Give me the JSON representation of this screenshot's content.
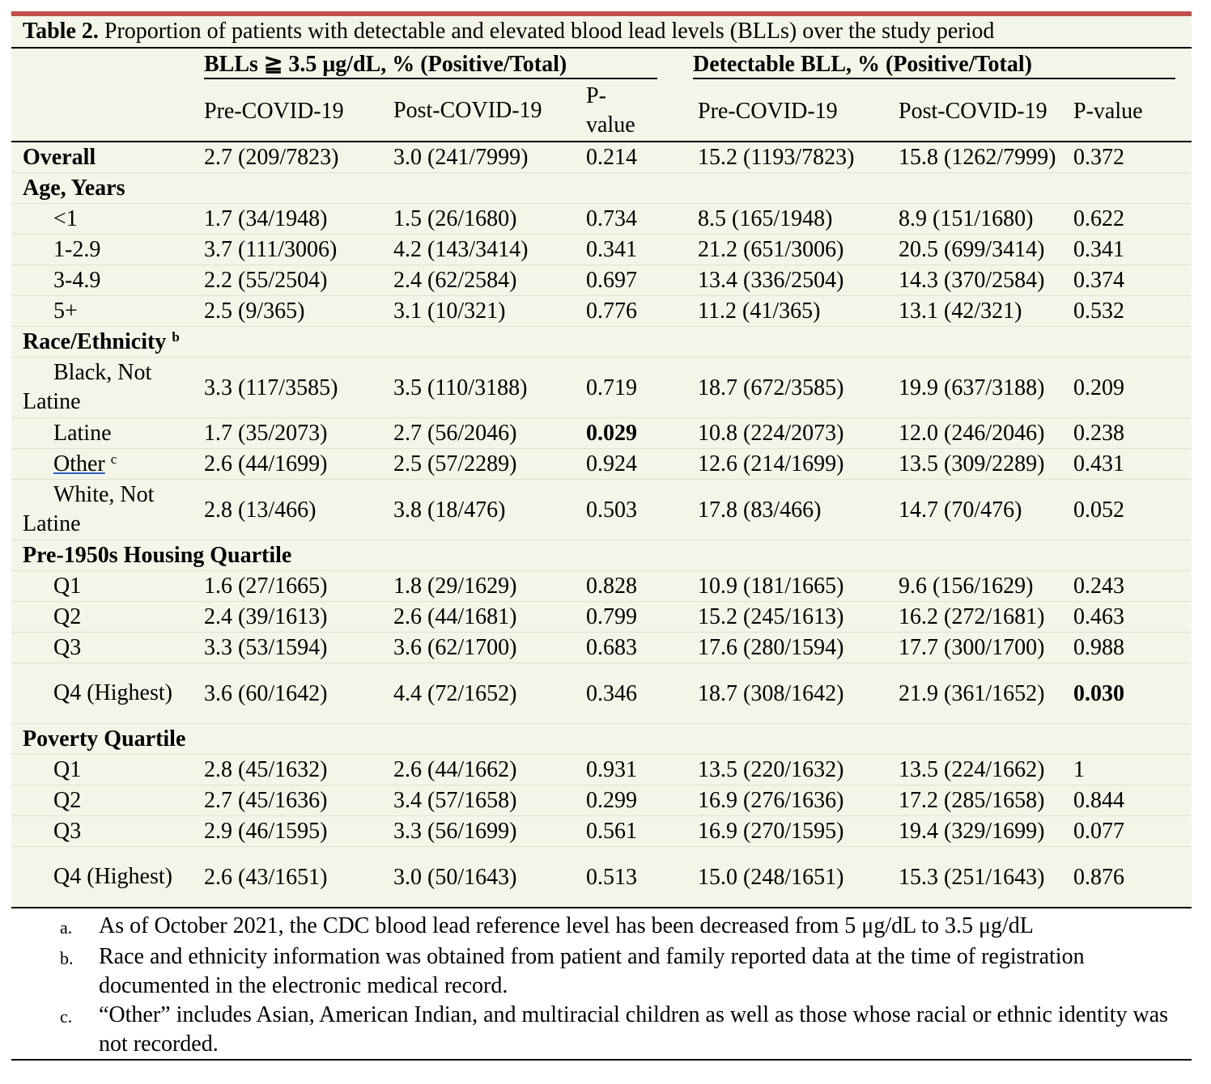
{
  "caption": {
    "label": "Table 2.",
    "text": " Proportion of patients with detectable and elevated blood lead levels (BLLs) over the study period"
  },
  "groups": {
    "elevated": "BLLs ≧ 3.5 μg/dL, % (Positive/Total)",
    "detectable": "Detectable BLL, % (Positive/Total)"
  },
  "columns": {
    "pre1": "Pre-COVID-19",
    "post1": "Post-COVID-19",
    "p1": "P-value",
    "pre2": "Pre-COVID-19",
    "post2": "Post-COVID-19",
    "p2": "P-value"
  },
  "rows": [
    {
      "type": "data",
      "label": "Overall",
      "bold_label": true,
      "sub": false,
      "cells": [
        "2.7 (209/7823)",
        "3.0 (241/7999)",
        "0.214",
        "15.2 (1193/7823)",
        "15.8 (1262/7999)",
        "0.372"
      ],
      "bold_cells": []
    },
    {
      "type": "section",
      "label": "Age, Years"
    },
    {
      "type": "data",
      "label": "<1",
      "sub": true,
      "cells": [
        "1.7 (34/1948)",
        "1.5 (26/1680)",
        "0.734",
        "8.5 (165/1948)",
        "8.9 (151/1680)",
        "0.622"
      ],
      "bold_cells": []
    },
    {
      "type": "data",
      "label": "1-2.9",
      "sub": true,
      "cells": [
        "3.7 (111/3006)",
        "4.2 (143/3414)",
        "0.341",
        "21.2 (651/3006)",
        "20.5 (699/3414)",
        "0.341"
      ],
      "bold_cells": []
    },
    {
      "type": "data",
      "label": "3-4.9",
      "sub": true,
      "cells": [
        "2.2 (55/2504)",
        "2.4 (62/2584)",
        "0.697",
        "13.4 (336/2504)",
        "14.3 (370/2584)",
        "0.374"
      ],
      "bold_cells": []
    },
    {
      "type": "data",
      "label": "5+",
      "sub": true,
      "cells": [
        "2.5 (9/365)",
        "3.1 (10/321)",
        "0.776",
        "11.2 (41/365)",
        "13.1 (42/321)",
        "0.532"
      ],
      "bold_cells": []
    },
    {
      "type": "section",
      "label": "Race/Ethnicity",
      "sup": "b"
    },
    {
      "type": "data",
      "label": "Black, Not Latine",
      "sub": true,
      "wrap": true,
      "cells": [
        "3.3 (117/3585)",
        "3.5 (110/3188)",
        "0.719",
        "18.7 (672/3585)",
        "19.9 (637/3188)",
        "0.209"
      ],
      "bold_cells": []
    },
    {
      "type": "data",
      "label": "Latine",
      "sub": true,
      "cells": [
        "1.7 (35/2073)",
        "2.7 (56/2046)",
        "0.029",
        "10.8 (224/2073)",
        "12.0 (246/2046)",
        "0.238"
      ],
      "bold_cells": [
        2
      ]
    },
    {
      "type": "data",
      "label": "Other",
      "sup": "c",
      "underline": true,
      "sub": true,
      "cells": [
        "2.6 (44/1699)",
        "2.5 (57/2289)",
        "0.924",
        "12.6 (214/1699)",
        "13.5 (309/2289)",
        "0.431"
      ],
      "bold_cells": []
    },
    {
      "type": "data",
      "label": "White, Not Latine",
      "sub": true,
      "wrap": true,
      "cells": [
        "2.8 (13/466)",
        "3.8 (18/476)",
        "0.503",
        "17.8 (83/466)",
        "14.7 (70/476)",
        "0.052"
      ],
      "bold_cells": []
    },
    {
      "type": "section",
      "label": "Pre-1950s Housing Quartile"
    },
    {
      "type": "data",
      "label": "Q1",
      "sub": true,
      "cells": [
        "1.6 (27/1665)",
        "1.8 (29/1629)",
        "0.828",
        "10.9 (181/1665)",
        "9.6 (156/1629)",
        "0.243"
      ],
      "bold_cells": []
    },
    {
      "type": "data",
      "label": "Q2",
      "sub": true,
      "cells": [
        "2.4 (39/1613)",
        "2.6 (44/1681)",
        "0.799",
        "15.2 (245/1613)",
        "16.2 (272/1681)",
        "0.463"
      ],
      "bold_cells": []
    },
    {
      "type": "data",
      "label": "Q3",
      "sub": true,
      "cells": [
        "3.3 (53/1594)",
        "3.6 (62/1700)",
        "0.683",
        "17.6 (280/1594)",
        "17.7 (300/1700)",
        "0.988"
      ],
      "bold_cells": []
    },
    {
      "type": "data",
      "label": "Q4 (Highest)",
      "sub": true,
      "wrap": true,
      "cells": [
        "3.6 (60/1642)",
        "4.4 (72/1652)",
        "0.346",
        "18.7 (308/1642)",
        "21.9 (361/1652)",
        "0.030"
      ],
      "bold_cells": [
        5
      ]
    },
    {
      "type": "section",
      "label": "Poverty Quartile"
    },
    {
      "type": "data",
      "label": "Q1",
      "sub": true,
      "cells": [
        "2.8 (45/1632)",
        "2.6 (44/1662)",
        "0.931",
        "13.5 (220/1632)",
        "13.5 (224/1662)",
        "1"
      ],
      "bold_cells": []
    },
    {
      "type": "data",
      "label": "Q2",
      "sub": true,
      "cells": [
        "2.7 (45/1636)",
        "3.4 (57/1658)",
        "0.299",
        "16.9 (276/1636)",
        "17.2 (285/1658)",
        "0.844"
      ],
      "bold_cells": []
    },
    {
      "type": "data",
      "label": "Q3",
      "sub": true,
      "cells": [
        "2.9 (46/1595)",
        "3.3 (56/1699)",
        "0.561",
        "16.9 (270/1595)",
        "19.4 (329/1699)",
        "0.077"
      ],
      "bold_cells": []
    },
    {
      "type": "data",
      "label": "Q4 (Highest)",
      "sub": true,
      "wrap": true,
      "last": true,
      "cells": [
        "2.6 (43/1651)",
        "3.0 (50/1643)",
        "0.513",
        "15.0 (248/1651)",
        "15.3 (251/1643)",
        "0.876"
      ],
      "bold_cells": []
    }
  ],
  "notes": [
    {
      "marker": "a.",
      "text": "As of October 2021, the CDC blood lead reference level has been decreased from 5 μg/dL to 3.5 μg/dL"
    },
    {
      "marker": "b.",
      "text": "Race and ethnicity information was obtained from patient and family reported data at the time of registration documented in the electronic medical record."
    },
    {
      "marker": "c.",
      "text": "“Other” includes Asian, American Indian, and multiracial children as well as those whose racial or ethnic identity was not recorded."
    }
  ]
}
